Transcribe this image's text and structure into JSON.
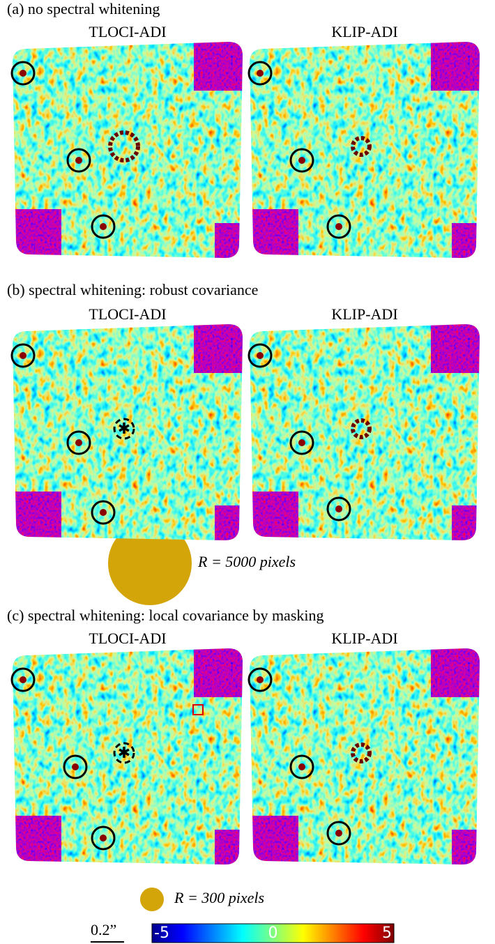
{
  "panels": [
    {
      "title": "(a) no spectral whitening",
      "columns": [
        "TLOCI-ADI",
        "KLIP-ADI"
      ]
    },
    {
      "title": "(b) spectral whitening: robust covariance",
      "columns": [
        "TLOCI-ADI",
        "KLIP-ADI"
      ]
    },
    {
      "title": "(c) spectral whitening: local covariance by masking",
      "columns": [
        "TLOCI-ADI",
        "KLIP-ADI"
      ]
    }
  ],
  "radius_labels": [
    "R = 5000 pixels",
    "R = 300 pixels"
  ],
  "scale_bar": "0.2”",
  "colorbar": {
    "ticks": [
      -5,
      0,
      5
    ]
  }
}
